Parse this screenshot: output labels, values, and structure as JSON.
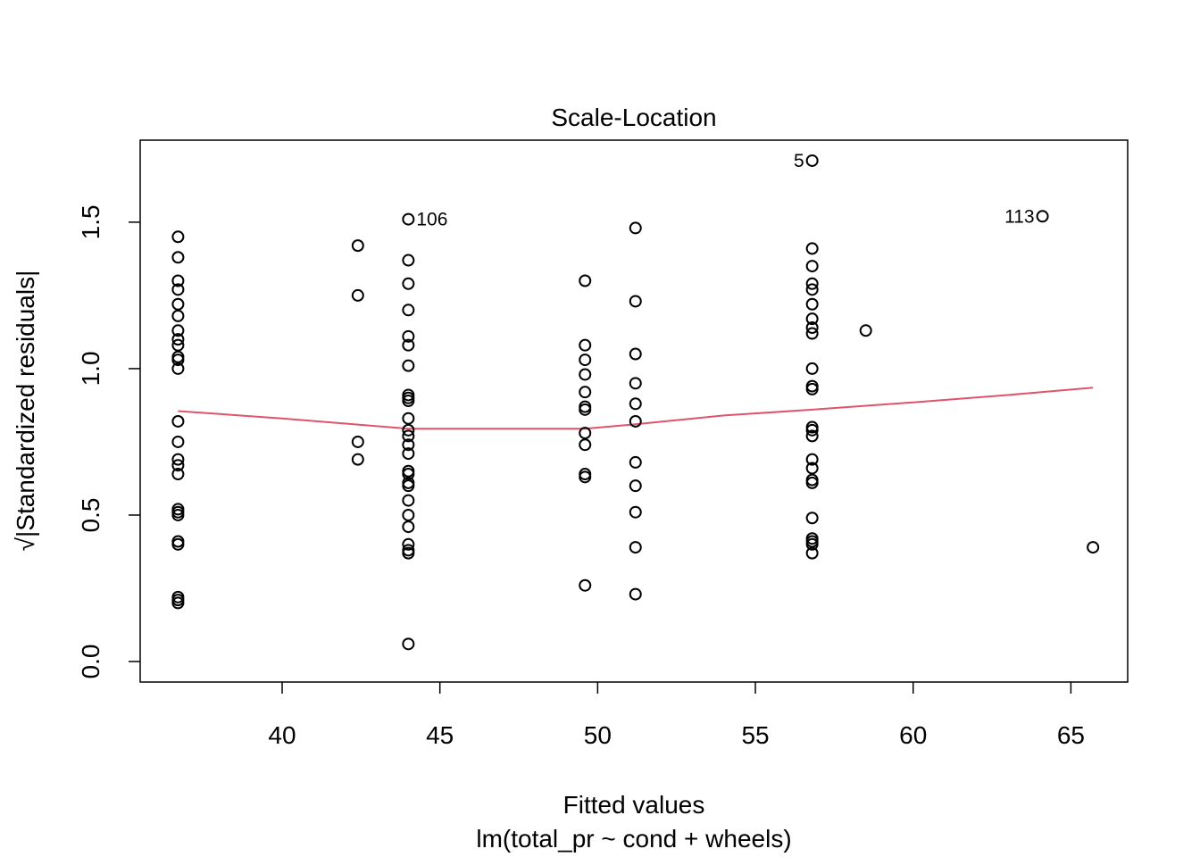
{
  "chart_data": {
    "type": "scatter",
    "title": "Scale-Location",
    "xlabel": "Fitted values",
    "xlabel2": "lm(total_pr ~ cond + wheels)",
    "ylabel": "√|Standardized residuals|",
    "xlim": [
      35.5,
      66.8
    ],
    "ylim": [
      -0.07,
      1.78
    ],
    "xticks": [
      40,
      45,
      50,
      55,
      60,
      65
    ],
    "yticks": [
      0.0,
      0.5,
      1.0,
      1.5
    ],
    "xtick_labels": [
      "40",
      "45",
      "50",
      "55",
      "60",
      "65"
    ],
    "ytick_labels": [
      "0.0",
      "0.5",
      "1.0",
      "1.5"
    ],
    "points": [
      {
        "x": 36.7,
        "y": 1.45
      },
      {
        "x": 36.7,
        "y": 1.38
      },
      {
        "x": 36.7,
        "y": 1.3
      },
      {
        "x": 36.7,
        "y": 1.27
      },
      {
        "x": 36.7,
        "y": 1.22
      },
      {
        "x": 36.7,
        "y": 1.18
      },
      {
        "x": 36.7,
        "y": 1.13
      },
      {
        "x": 36.7,
        "y": 1.1
      },
      {
        "x": 36.7,
        "y": 1.08
      },
      {
        "x": 36.7,
        "y": 1.04
      },
      {
        "x": 36.7,
        "y": 1.03
      },
      {
        "x": 36.7,
        "y": 1.0
      },
      {
        "x": 36.7,
        "y": 0.82
      },
      {
        "x": 36.7,
        "y": 0.75
      },
      {
        "x": 36.7,
        "y": 0.69
      },
      {
        "x": 36.7,
        "y": 0.67
      },
      {
        "x": 36.7,
        "y": 0.64
      },
      {
        "x": 36.7,
        "y": 0.52
      },
      {
        "x": 36.7,
        "y": 0.51
      },
      {
        "x": 36.7,
        "y": 0.5
      },
      {
        "x": 36.7,
        "y": 0.41
      },
      {
        "x": 36.7,
        "y": 0.4
      },
      {
        "x": 36.7,
        "y": 0.22
      },
      {
        "x": 36.7,
        "y": 0.21
      },
      {
        "x": 36.7,
        "y": 0.2
      },
      {
        "x": 42.4,
        "y": 1.42
      },
      {
        "x": 42.4,
        "y": 1.25
      },
      {
        "x": 42.4,
        "y": 0.75
      },
      {
        "x": 42.4,
        "y": 0.69
      },
      {
        "x": 44.0,
        "y": 1.51,
        "label": "106"
      },
      {
        "x": 44.0,
        "y": 1.37
      },
      {
        "x": 44.0,
        "y": 1.29
      },
      {
        "x": 44.0,
        "y": 1.2
      },
      {
        "x": 44.0,
        "y": 1.11
      },
      {
        "x": 44.0,
        "y": 1.08
      },
      {
        "x": 44.0,
        "y": 1.01
      },
      {
        "x": 44.0,
        "y": 0.91
      },
      {
        "x": 44.0,
        "y": 0.9
      },
      {
        "x": 44.0,
        "y": 0.89
      },
      {
        "x": 44.0,
        "y": 0.83
      },
      {
        "x": 44.0,
        "y": 0.79
      },
      {
        "x": 44.0,
        "y": 0.77
      },
      {
        "x": 44.0,
        "y": 0.74
      },
      {
        "x": 44.0,
        "y": 0.71
      },
      {
        "x": 44.0,
        "y": 0.65
      },
      {
        "x": 44.0,
        "y": 0.64
      },
      {
        "x": 44.0,
        "y": 0.61
      },
      {
        "x": 44.0,
        "y": 0.6
      },
      {
        "x": 44.0,
        "y": 0.55
      },
      {
        "x": 44.0,
        "y": 0.5
      },
      {
        "x": 44.0,
        "y": 0.46
      },
      {
        "x": 44.0,
        "y": 0.4
      },
      {
        "x": 44.0,
        "y": 0.38
      },
      {
        "x": 44.0,
        "y": 0.37
      },
      {
        "x": 44.0,
        "y": 0.06
      },
      {
        "x": 49.6,
        "y": 1.3
      },
      {
        "x": 49.6,
        "y": 1.08
      },
      {
        "x": 49.6,
        "y": 1.03
      },
      {
        "x": 49.6,
        "y": 0.98
      },
      {
        "x": 49.6,
        "y": 0.92
      },
      {
        "x": 49.6,
        "y": 0.87
      },
      {
        "x": 49.6,
        "y": 0.86
      },
      {
        "x": 49.6,
        "y": 0.78
      },
      {
        "x": 49.6,
        "y": 0.74
      },
      {
        "x": 49.6,
        "y": 0.64
      },
      {
        "x": 49.6,
        "y": 0.63
      },
      {
        "x": 49.6,
        "y": 0.26
      },
      {
        "x": 51.2,
        "y": 1.48
      },
      {
        "x": 51.2,
        "y": 1.23
      },
      {
        "x": 51.2,
        "y": 1.05
      },
      {
        "x": 51.2,
        "y": 0.95
      },
      {
        "x": 51.2,
        "y": 0.88
      },
      {
        "x": 51.2,
        "y": 0.82
      },
      {
        "x": 51.2,
        "y": 0.68
      },
      {
        "x": 51.2,
        "y": 0.6
      },
      {
        "x": 51.2,
        "y": 0.51
      },
      {
        "x": 51.2,
        "y": 0.39
      },
      {
        "x": 51.2,
        "y": 0.23
      },
      {
        "x": 56.8,
        "y": 1.71,
        "label": "5"
      },
      {
        "x": 56.8,
        "y": 1.41
      },
      {
        "x": 56.8,
        "y": 1.35
      },
      {
        "x": 56.8,
        "y": 1.29
      },
      {
        "x": 56.8,
        "y": 1.27
      },
      {
        "x": 56.8,
        "y": 1.22
      },
      {
        "x": 56.8,
        "y": 1.17
      },
      {
        "x": 56.8,
        "y": 1.14
      },
      {
        "x": 56.8,
        "y": 1.12
      },
      {
        "x": 56.8,
        "y": 1.0
      },
      {
        "x": 56.8,
        "y": 0.94
      },
      {
        "x": 56.8,
        "y": 0.93
      },
      {
        "x": 56.8,
        "y": 0.8
      },
      {
        "x": 56.8,
        "y": 0.79
      },
      {
        "x": 56.8,
        "y": 0.77
      },
      {
        "x": 56.8,
        "y": 0.69
      },
      {
        "x": 56.8,
        "y": 0.66
      },
      {
        "x": 56.8,
        "y": 0.62
      },
      {
        "x": 56.8,
        "y": 0.61
      },
      {
        "x": 56.8,
        "y": 0.49
      },
      {
        "x": 56.8,
        "y": 0.42
      },
      {
        "x": 56.8,
        "y": 0.41
      },
      {
        "x": 56.8,
        "y": 0.4
      },
      {
        "x": 56.8,
        "y": 0.37
      },
      {
        "x": 58.5,
        "y": 1.13
      },
      {
        "x": 64.1,
        "y": 1.52,
        "label": "113"
      },
      {
        "x": 65.7,
        "y": 0.39
      }
    ],
    "smooth_line": {
      "color": "#DF536B",
      "x": [
        36.7,
        40.0,
        44.0,
        47.0,
        49.6,
        51.2,
        54.0,
        56.8,
        60.0,
        63.0,
        65.7
      ],
      "y": [
        0.855,
        0.83,
        0.795,
        0.795,
        0.795,
        0.81,
        0.84,
        0.86,
        0.885,
        0.91,
        0.935
      ]
    }
  }
}
